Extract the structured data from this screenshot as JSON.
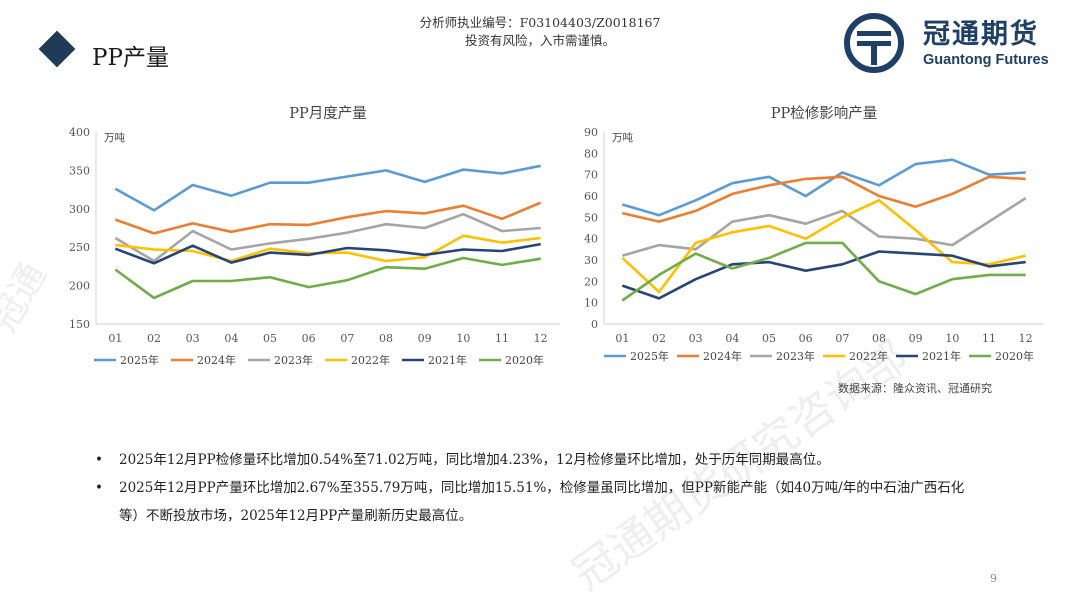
{
  "header": {
    "title": "PP产量",
    "analyst_line1": "分析师执业编号：F03104403/Z0018167",
    "analyst_line2": "投资有风险，入市需谨慎。"
  },
  "logo": {
    "cn": "冠通期货",
    "en": "Guantong Futures",
    "brand_color": "#1e3f66"
  },
  "watermark": {
    "text": "冠通期货研究咨询部",
    "short": "冠通"
  },
  "chart_data": [
    {
      "type": "line",
      "title": "PP月度产量",
      "unit_label": "万吨",
      "categories": [
        "01",
        "02",
        "03",
        "04",
        "05",
        "06",
        "07",
        "08",
        "09",
        "10",
        "11",
        "12"
      ],
      "ylim": [
        150,
        400
      ],
      "yticks": [
        150,
        200,
        250,
        300,
        350,
        400
      ],
      "grid": false,
      "legend": "bottom",
      "series": [
        {
          "name": "2025年",
          "color": "#5b9bd5",
          "values": [
            326,
            298,
            331,
            317,
            334,
            334,
            342,
            350,
            335,
            351,
            346,
            356
          ]
        },
        {
          "name": "2024年",
          "color": "#ed7d31",
          "values": [
            286,
            268,
            281,
            270,
            280,
            279,
            289,
            297,
            294,
            304,
            287,
            308
          ]
        },
        {
          "name": "2023年",
          "color": "#a5a5a5",
          "values": [
            262,
            232,
            271,
            247,
            255,
            261,
            269,
            280,
            275,
            293,
            271,
            275
          ]
        },
        {
          "name": "2022年",
          "color": "#ffc000",
          "values": [
            253,
            247,
            245,
            232,
            248,
            242,
            243,
            232,
            237,
            265,
            256,
            262
          ]
        },
        {
          "name": "2021年",
          "color": "#264478",
          "values": [
            248,
            229,
            252,
            230,
            243,
            240,
            249,
            246,
            240,
            247,
            245,
            254
          ]
        },
        {
          "name": "2020年",
          "color": "#70ad47",
          "values": [
            221,
            184,
            206,
            206,
            211,
            198,
            207,
            224,
            222,
            236,
            227,
            235
          ]
        }
      ]
    },
    {
      "type": "line",
      "title": "PP检修影响产量",
      "unit_label": "万吨",
      "categories": [
        "01",
        "02",
        "03",
        "04",
        "05",
        "06",
        "07",
        "08",
        "09",
        "10",
        "11",
        "12"
      ],
      "ylim": [
        0,
        90
      ],
      "yticks": [
        0,
        10,
        20,
        30,
        40,
        50,
        60,
        70,
        80,
        90
      ],
      "grid": false,
      "legend": "bottom",
      "series": [
        {
          "name": "2025年",
          "color": "#5b9bd5",
          "values": [
            56,
            51,
            58,
            66,
            69,
            60,
            71,
            65,
            75,
            77,
            70,
            71
          ]
        },
        {
          "name": "2024年",
          "color": "#ed7d31",
          "values": [
            52,
            48,
            53,
            61,
            65,
            68,
            69,
            60,
            55,
            61,
            69,
            68
          ]
        },
        {
          "name": "2023年",
          "color": "#a5a5a5",
          "values": [
            32,
            37,
            35,
            48,
            51,
            47,
            53,
            41,
            40,
            37,
            48,
            59
          ]
        },
        {
          "name": "2022年",
          "color": "#ffc000",
          "values": [
            31,
            15,
            38,
            43,
            46,
            40,
            50,
            58,
            44,
            29,
            28,
            32
          ]
        },
        {
          "name": "2021年",
          "color": "#264478",
          "values": [
            18,
            12,
            21,
            28,
            29,
            25,
            28,
            34,
            33,
            32,
            27,
            29
          ]
        },
        {
          "name": "2020年",
          "color": "#70ad47",
          "values": [
            11,
            23,
            33,
            26,
            31,
            38,
            38,
            20,
            14,
            21,
            23,
            23
          ]
        }
      ]
    }
  ],
  "source": "数据来源：隆众资讯、冠通研究",
  "bullets": [
    "2025年12月PP检修量环比增加0.54%至71.02万吨，同比增加4.23%，12月检修量环比增加，处于历年同期最高位。",
    "2025年12月PP产量环比增加2.67%至355.79万吨，同比增加15.51%，检修量虽同比增加，但PP新能产能（如40万吨/年的中石油广西石化等）不断投放市场，2025年12月PP产量刷新历史最高位。"
  ],
  "bullet_symbol": "•",
  "page_number": "9"
}
